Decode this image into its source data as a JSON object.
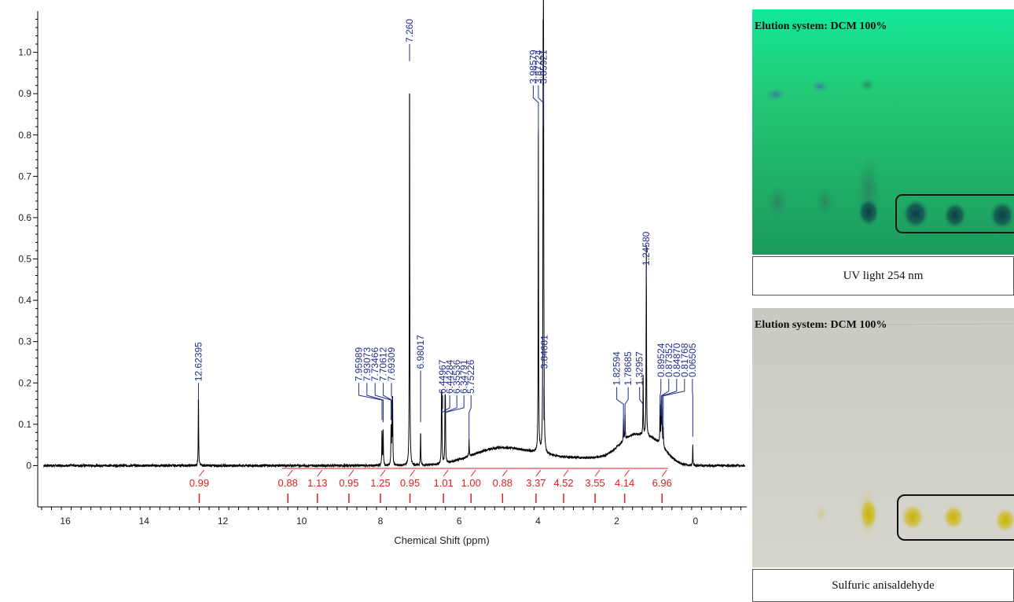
{
  "chart_data": {
    "type": "line",
    "xlabel": "Chemical Shift (ppm)",
    "xlim": [
      16.7,
      -1.3
    ],
    "ylim": [
      -0.1,
      1.1
    ],
    "x_ticks": [
      16,
      14,
      12,
      10,
      8,
      6,
      4,
      2,
      0
    ],
    "y_ticks": [
      0,
      0.1,
      0.2,
      0.3,
      0.4,
      0.5,
      0.6,
      0.7,
      0.8,
      0.9,
      1.0
    ],
    "x_tick_labels": [
      "16",
      "14",
      "12",
      "10",
      "8",
      "6",
      "4",
      "2",
      "0"
    ],
    "y_tick_labels": [
      "0",
      "0.1",
      "0.2",
      "0.3",
      "0.4",
      "0.5",
      "0.6",
      "0.7",
      "0.8",
      "0.9",
      "1.0"
    ],
    "spectrum_color": "#000000",
    "peak_label_color": "#1f2d8a",
    "integral_color": "#e02020",
    "peaks": [
      {
        "label": "12.62395",
        "x": 12.62,
        "height": 0.18
      },
      {
        "label": "7.95989",
        "x": 7.96,
        "height": 0.09
      },
      {
        "label": "7.93073",
        "x": 7.93,
        "height": 0.085
      },
      {
        "label": "7.73466",
        "x": 7.73,
        "height": 0.09
      },
      {
        "label": "7.70612",
        "x": 7.71,
        "height": 0.085
      },
      {
        "label": "7.69309",
        "x": 7.69,
        "height": 0.16
      },
      {
        "label": "7.260",
        "x": 7.26,
        "height": 1.0
      },
      {
        "label": "6.98017",
        "x": 6.98,
        "height": 0.085
      },
      {
        "label": "6.44967",
        "x": 6.45,
        "height": 0.14
      },
      {
        "label": "6.44284",
        "x": 6.44,
        "height": 0.14
      },
      {
        "label": "6.35536",
        "x": 6.36,
        "height": 0.13
      },
      {
        "label": "6.34791",
        "x": 6.35,
        "height": 0.13
      },
      {
        "label": "5.75226",
        "x": 5.75,
        "height": 0.04
      },
      {
        "label": "3.98579",
        "x": 3.99,
        "height": 0.78
      },
      {
        "label": "3.87224",
        "x": 3.87,
        "height": 0.8
      },
      {
        "label": "3.85921",
        "x": 3.86,
        "height": 0.91
      },
      {
        "label": "3.84681",
        "x": 3.85,
        "height": 0.09
      },
      {
        "label": "1.82594",
        "x": 1.83,
        "height": 0.05
      },
      {
        "label": "1.78685",
        "x": 1.79,
        "height": 0.06
      },
      {
        "label": "1.32957",
        "x": 1.33,
        "height": 0.14
      },
      {
        "label": "1.24580",
        "x": 1.25,
        "height": 0.46
      },
      {
        "label": "0.89524",
        "x": 0.9,
        "height": 0.1
      },
      {
        "label": "0.87352",
        "x": 0.87,
        "height": 0.1
      },
      {
        "label": "0.84870",
        "x": 0.85,
        "height": 0.08
      },
      {
        "label": "0.81768",
        "x": 0.82,
        "height": 0.05
      },
      {
        "label": "0.06505",
        "x": 0.07,
        "height": 0.05
      }
    ],
    "integrals": [
      {
        "label": "0.99",
        "x": 12.6
      },
      {
        "label": "0.88",
        "x": 10.35
      },
      {
        "label": "1.13",
        "x": 9.6
      },
      {
        "label": "0.95",
        "x": 8.8
      },
      {
        "label": "1.25",
        "x": 8.0
      },
      {
        "label": "0.95",
        "x": 7.25
      },
      {
        "label": "1.01",
        "x": 6.4
      },
      {
        "label": "1.00",
        "x": 5.7
      },
      {
        "label": "0.88",
        "x": 4.9
      },
      {
        "label": "3.37",
        "x": 4.05
      },
      {
        "label": "4.52",
        "x": 3.35
      },
      {
        "label": "3.55",
        "x": 2.55
      },
      {
        "label": "4.14",
        "x": 1.8
      },
      {
        "label": "6.96",
        "x": 0.85
      }
    ]
  },
  "tlc_panels": [
    {
      "elution": "Elution system: DCM 100%",
      "caption": "UV light 254 nm"
    },
    {
      "elution": "Elution system: DCM 100%",
      "caption": "Sulfuric anisaldehyde"
    }
  ]
}
